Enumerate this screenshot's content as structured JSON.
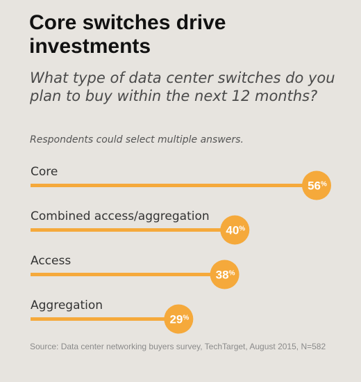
{
  "chart_data": {
    "type": "bar",
    "title": "Core switches drive investments",
    "subtitle": "What type of data center switches do you plan to buy within the next 12 months?",
    "note": "Respondents could select multiple answers.",
    "categories": [
      "Core",
      "Combined access/aggregation",
      "Access",
      "Aggregation"
    ],
    "values": [
      56,
      40,
      38,
      29
    ],
    "value_labels": [
      "56",
      "40",
      "38",
      "29"
    ],
    "unit": "%",
    "xlim": [
      0,
      56
    ],
    "orientation": "horizontal",
    "grid": false,
    "legend": "none",
    "source": "Source: Data center networking buyers survey, TechTarget, August 2015, N=582"
  },
  "colors": {
    "bar": "#f5a93b",
    "badge": "#f5a93b",
    "badge_text": "#ffffff",
    "background": "#e7e4df",
    "label_text": "#333333"
  }
}
